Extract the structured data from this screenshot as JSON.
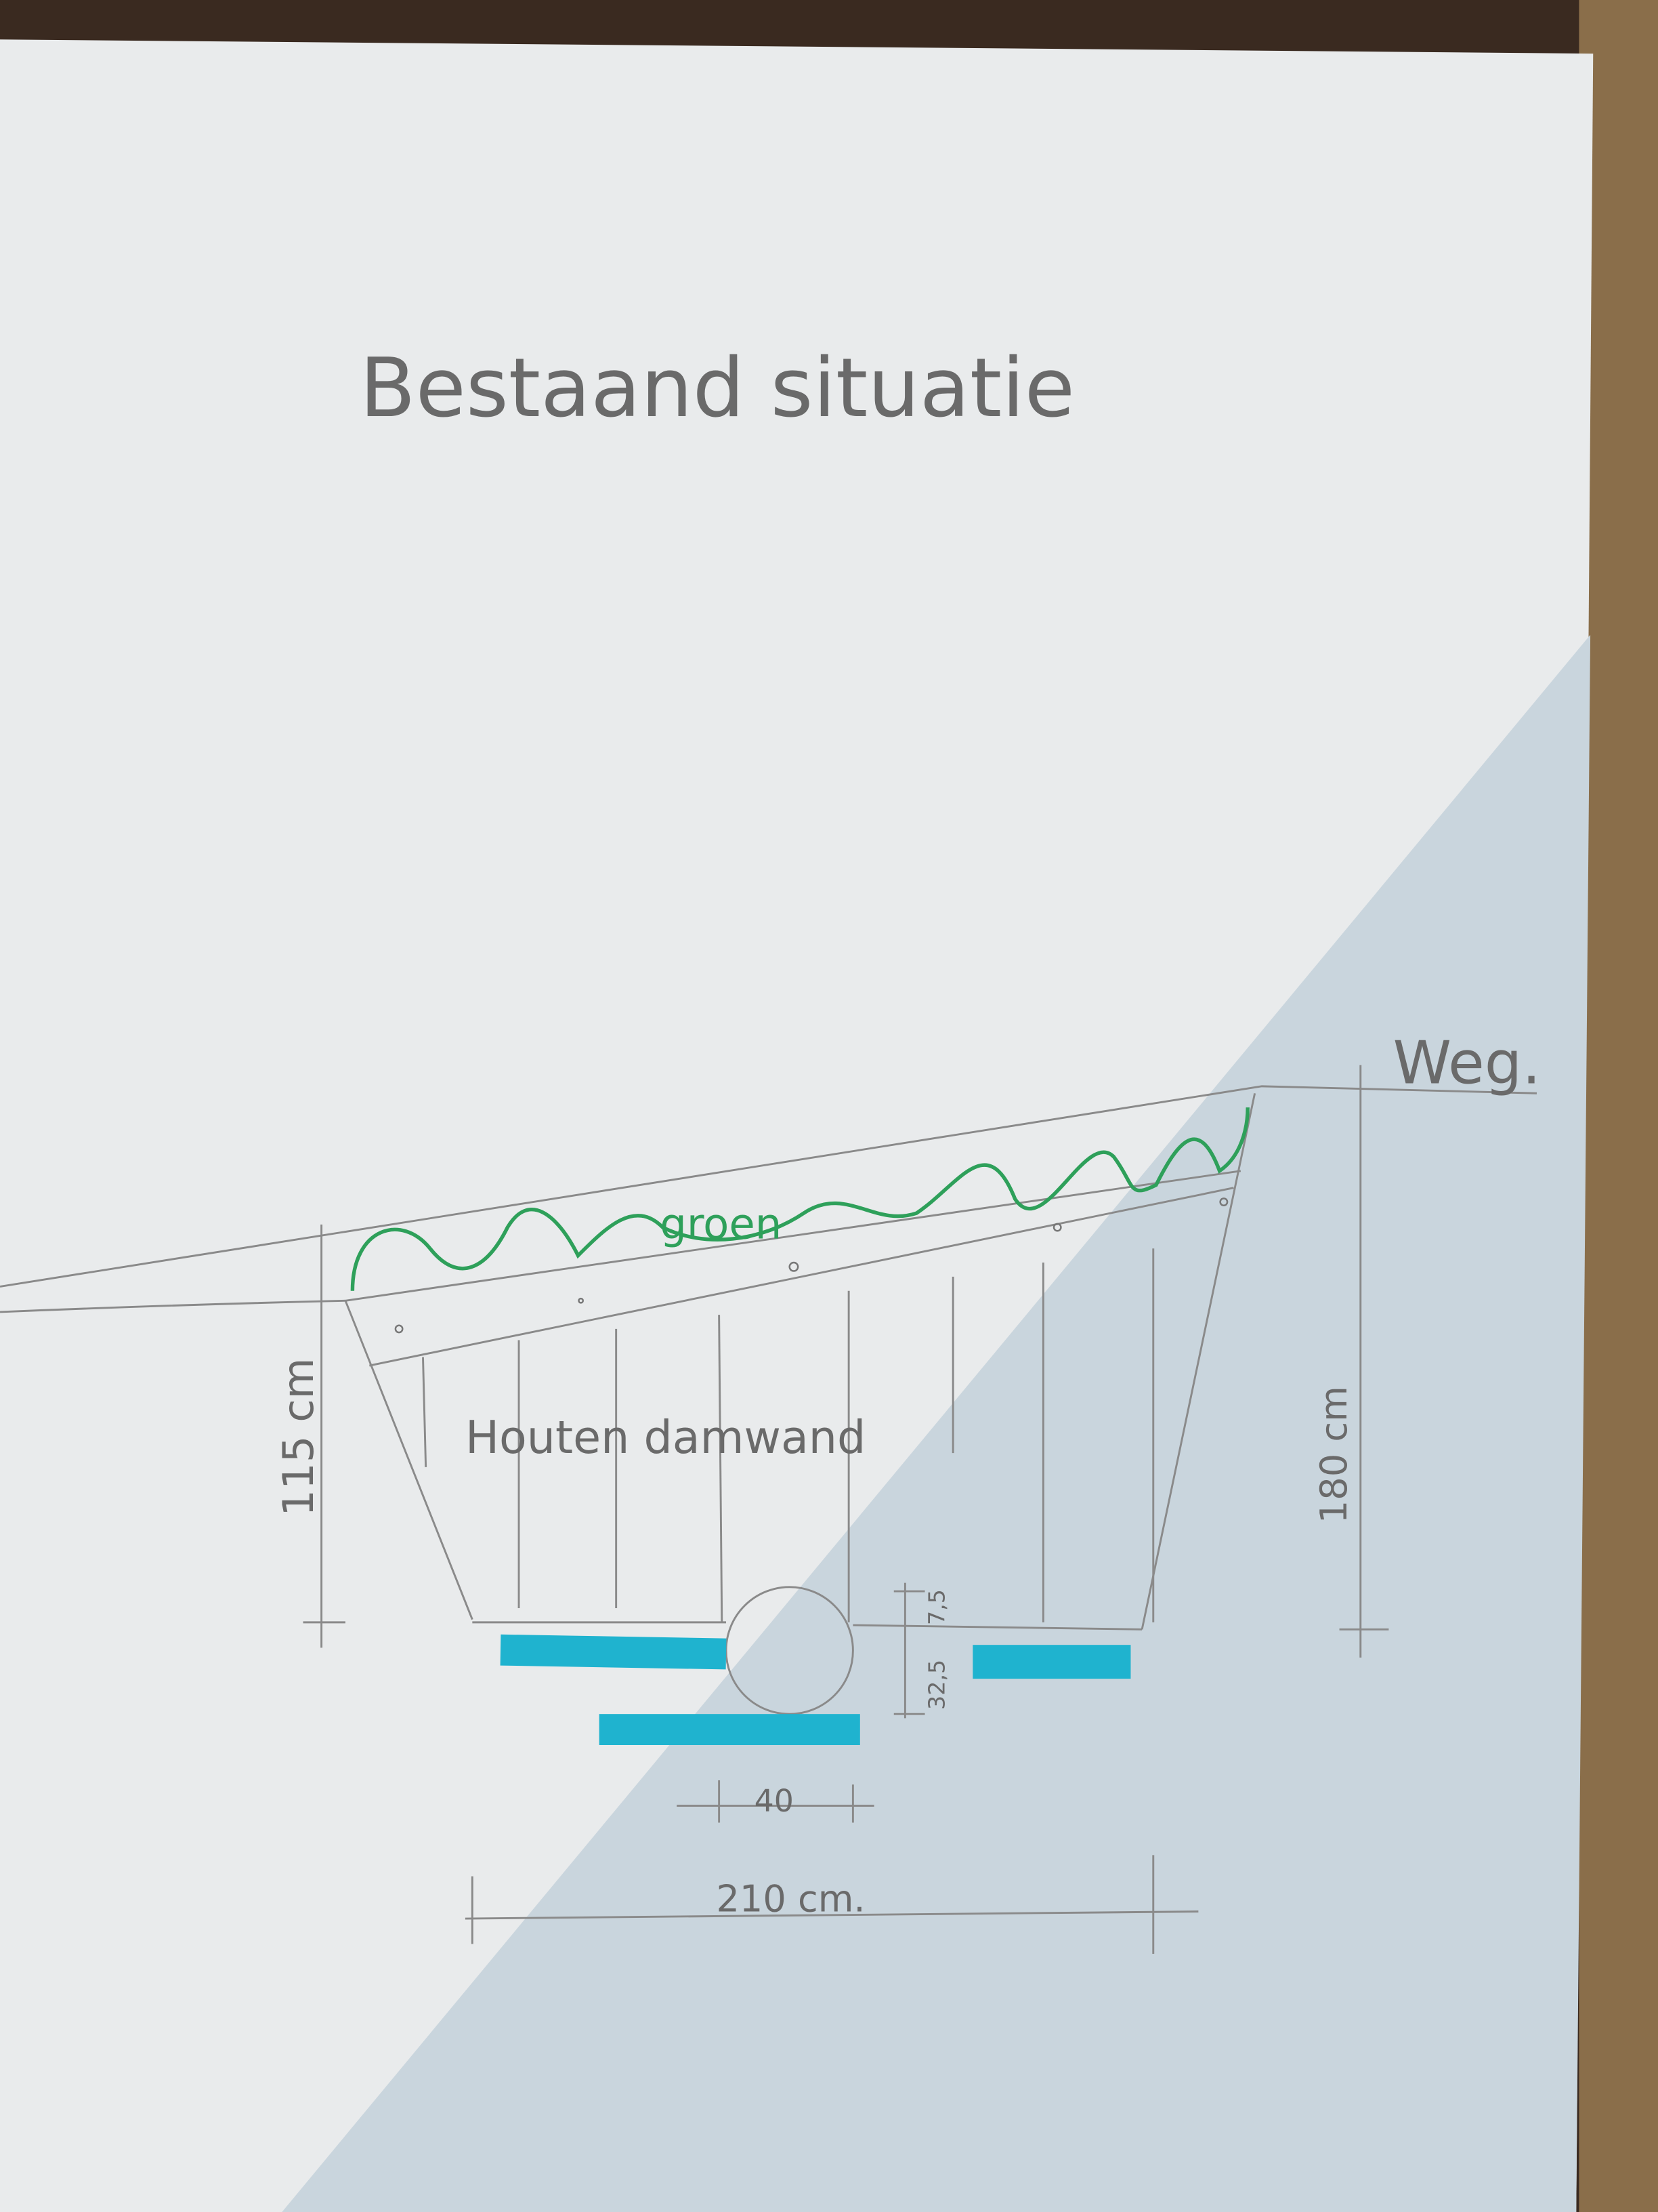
{
  "title": "Bestaand situatie",
  "labels": {
    "road": "Weg.",
    "vegetation": "groen",
    "wall": "Houten damwand"
  },
  "dimensions": {
    "left_height": "115 cm",
    "right_height": "180 cm",
    "pipe_depth": "32,5",
    "pipe_offset": "7,5",
    "pipe_width": "40",
    "bottom_width": "210 cm."
  },
  "colors": {
    "paper": "#e9ebec",
    "paper_shadow": "#c9d5dd",
    "green_marker": "#2ea05a",
    "cyan_marker": "#1fb3cf",
    "pencil": "#8a8a8a",
    "table_wood": "#3a2a20",
    "carpet": "#8a6e4a"
  }
}
